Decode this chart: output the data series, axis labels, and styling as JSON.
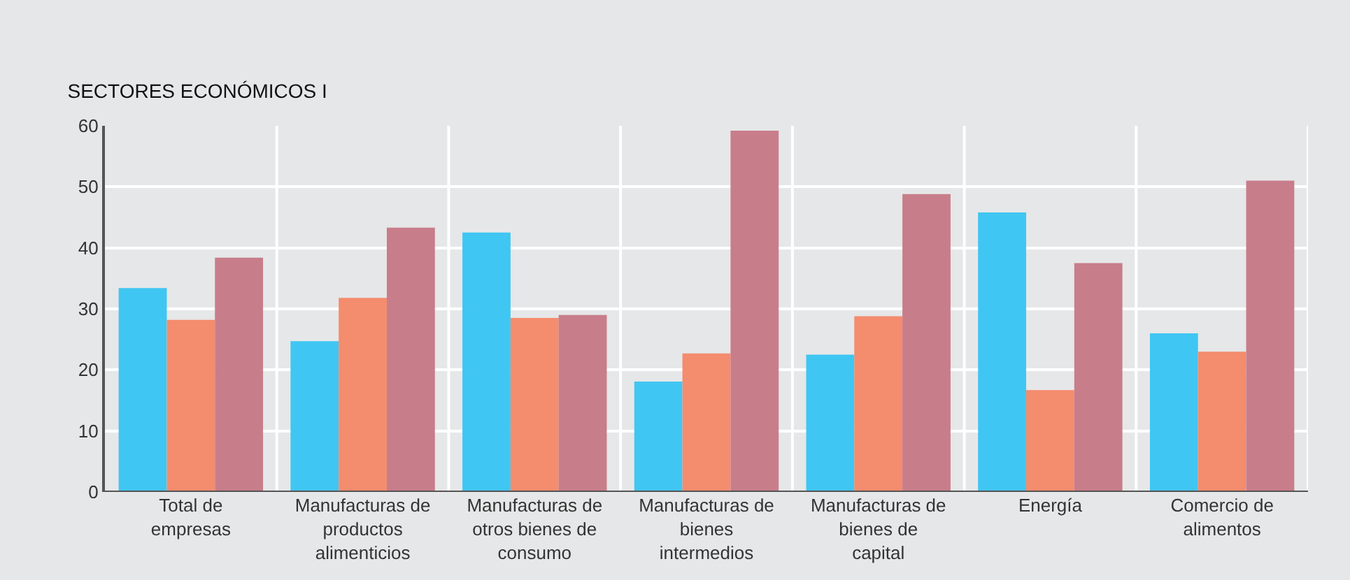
{
  "chart_data": {
    "type": "bar",
    "title": "SECTORES ECONÓMICOS I",
    "categories": [
      "Total de empresas",
      "Manufacturas de productos alimenticios",
      "Manufacturas de otros bienes de consumo",
      "Manufacturas de bienes intermedios",
      "Manufacturas de bienes de capital",
      "Energía",
      "Comercio de alimentos"
    ],
    "series": [
      {
        "color": "#40c6f2",
        "values": [
          33.4,
          24.7,
          42.5,
          18.1,
          22.5,
          45.8,
          26.0
        ]
      },
      {
        "color": "#f48c6e",
        "values": [
          28.2,
          31.8,
          28.5,
          22.7,
          28.8,
          16.7,
          23.0
        ]
      },
      {
        "color": "#c87d8a",
        "values": [
          38.4,
          43.3,
          29.0,
          59.2,
          48.8,
          37.5,
          51.0
        ]
      }
    ],
    "ylim": [
      0,
      60
    ],
    "yticks": [
      0,
      10,
      20,
      30,
      40,
      50,
      60
    ],
    "grid": true
  }
}
